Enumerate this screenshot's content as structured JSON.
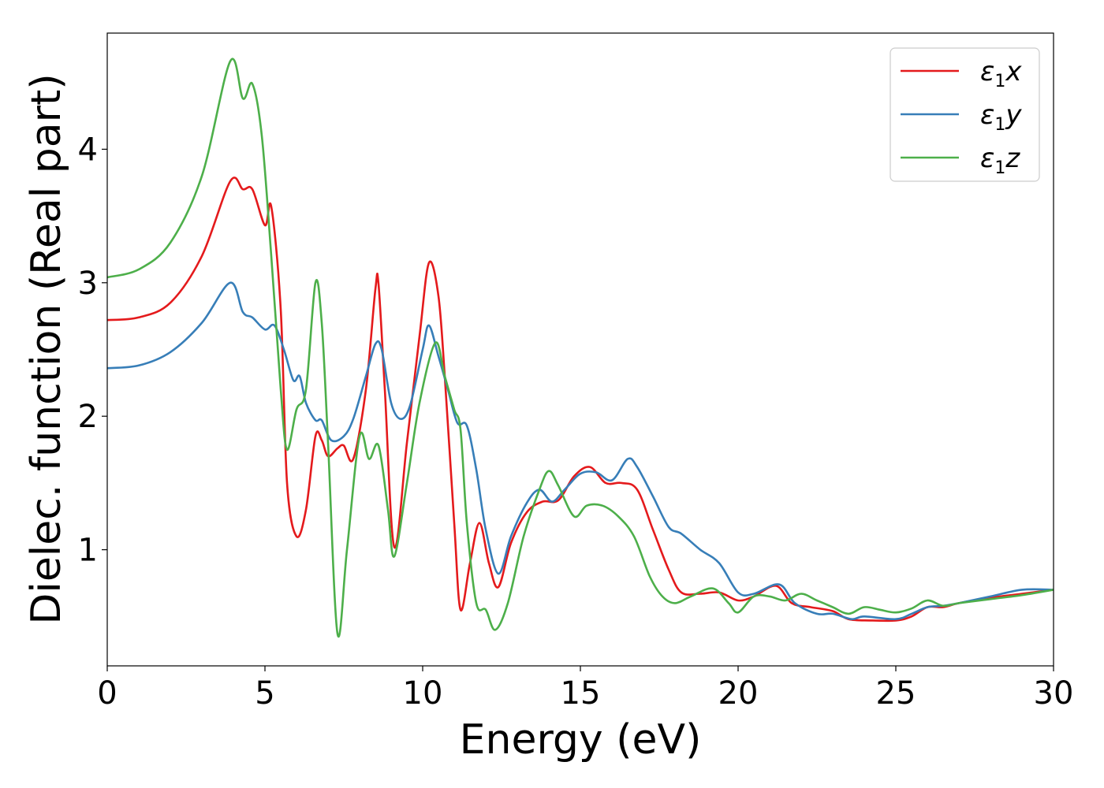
{
  "chart_data": {
    "type": "line",
    "xlabel": "Energy (eV)",
    "ylabel": "Dielec. function (Real part)",
    "xlim": [
      0,
      30
    ],
    "ylim": [
      0.13,
      4.87
    ],
    "xticks": [
      0,
      5,
      10,
      15,
      20,
      25,
      30
    ],
    "yticks": [
      1,
      2,
      3,
      4
    ],
    "grid": false,
    "legend_position": "top-right",
    "series": [
      {
        "name": "ε1x",
        "legend_base": "ε",
        "legend_sub": "1",
        "legend_var": "x",
        "color": "#e41a1c",
        "points": [
          [
            0,
            2.72
          ],
          [
            1,
            2.74
          ],
          [
            2,
            2.85
          ],
          [
            3,
            3.2
          ],
          [
            3.9,
            3.76
          ],
          [
            4.3,
            3.7
          ],
          [
            4.6,
            3.7
          ],
          [
            5.0,
            3.43
          ],
          [
            5.2,
            3.57
          ],
          [
            5.5,
            2.8
          ],
          [
            5.7,
            1.5
          ],
          [
            6.0,
            1.1
          ],
          [
            6.3,
            1.3
          ],
          [
            6.6,
            1.85
          ],
          [
            6.8,
            1.82
          ],
          [
            7.0,
            1.7
          ],
          [
            7.3,
            1.76
          ],
          [
            7.5,
            1.78
          ],
          [
            7.8,
            1.68
          ],
          [
            8.2,
            2.2
          ],
          [
            8.5,
            2.95
          ],
          [
            8.6,
            2.99
          ],
          [
            8.8,
            2.2
          ],
          [
            9.1,
            1.02
          ],
          [
            9.5,
            1.8
          ],
          [
            9.9,
            2.6
          ],
          [
            10.2,
            3.15
          ],
          [
            10.5,
            2.9
          ],
          [
            10.7,
            2.3
          ],
          [
            11.0,
            1.2
          ],
          [
            11.2,
            0.55
          ],
          [
            11.5,
            0.9
          ],
          [
            11.8,
            1.2
          ],
          [
            12.1,
            0.9
          ],
          [
            12.4,
            0.72
          ],
          [
            12.8,
            1.05
          ],
          [
            13.3,
            1.28
          ],
          [
            13.8,
            1.36
          ],
          [
            14.3,
            1.37
          ],
          [
            14.8,
            1.55
          ],
          [
            15.3,
            1.62
          ],
          [
            15.8,
            1.5
          ],
          [
            16.3,
            1.5
          ],
          [
            16.8,
            1.45
          ],
          [
            17.3,
            1.15
          ],
          [
            17.8,
            0.85
          ],
          [
            18.2,
            0.68
          ],
          [
            18.8,
            0.67
          ],
          [
            19.4,
            0.68
          ],
          [
            20.0,
            0.62
          ],
          [
            20.5,
            0.65
          ],
          [
            21.2,
            0.73
          ],
          [
            21.7,
            0.6
          ],
          [
            22.3,
            0.57
          ],
          [
            23.0,
            0.54
          ],
          [
            23.5,
            0.48
          ],
          [
            24.2,
            0.47
          ],
          [
            25.0,
            0.47
          ],
          [
            25.5,
            0.5
          ],
          [
            26.0,
            0.57
          ],
          [
            26.5,
            0.57
          ],
          [
            27.0,
            0.6
          ],
          [
            28.0,
            0.64
          ],
          [
            29.0,
            0.67
          ],
          [
            30,
            0.7
          ]
        ]
      },
      {
        "name": "ε1y",
        "legend_base": "ε",
        "legend_sub": "1",
        "legend_var": "y",
        "color": "#377eb8",
        "points": [
          [
            0,
            2.36
          ],
          [
            1,
            2.38
          ],
          [
            2,
            2.48
          ],
          [
            3,
            2.7
          ],
          [
            3.9,
            3.0
          ],
          [
            4.3,
            2.78
          ],
          [
            4.6,
            2.74
          ],
          [
            5.0,
            2.65
          ],
          [
            5.3,
            2.68
          ],
          [
            5.6,
            2.5
          ],
          [
            5.9,
            2.27
          ],
          [
            6.1,
            2.3
          ],
          [
            6.3,
            2.1
          ],
          [
            6.6,
            1.97
          ],
          [
            6.8,
            1.97
          ],
          [
            7.1,
            1.82
          ],
          [
            7.5,
            1.85
          ],
          [
            7.8,
            1.98
          ],
          [
            8.2,
            2.3
          ],
          [
            8.5,
            2.54
          ],
          [
            8.7,
            2.5
          ],
          [
            9.0,
            2.1
          ],
          [
            9.3,
            1.98
          ],
          [
            9.6,
            2.08
          ],
          [
            10.0,
            2.5
          ],
          [
            10.2,
            2.68
          ],
          [
            10.5,
            2.45
          ],
          [
            10.8,
            2.2
          ],
          [
            11.1,
            1.95
          ],
          [
            11.4,
            1.93
          ],
          [
            11.7,
            1.6
          ],
          [
            12.0,
            1.15
          ],
          [
            12.4,
            0.82
          ],
          [
            12.8,
            1.1
          ],
          [
            13.3,
            1.35
          ],
          [
            13.7,
            1.45
          ],
          [
            14.1,
            1.36
          ],
          [
            14.5,
            1.45
          ],
          [
            15.0,
            1.57
          ],
          [
            15.5,
            1.58
          ],
          [
            16.0,
            1.52
          ],
          [
            16.5,
            1.68
          ],
          [
            16.8,
            1.62
          ],
          [
            17.3,
            1.4
          ],
          [
            17.8,
            1.17
          ],
          [
            18.2,
            1.12
          ],
          [
            18.8,
            1.0
          ],
          [
            19.4,
            0.9
          ],
          [
            20.0,
            0.68
          ],
          [
            20.5,
            0.67
          ],
          [
            21.3,
            0.74
          ],
          [
            21.8,
            0.6
          ],
          [
            22.5,
            0.52
          ],
          [
            23.0,
            0.52
          ],
          [
            23.6,
            0.48
          ],
          [
            24.0,
            0.5
          ],
          [
            25.0,
            0.48
          ],
          [
            25.5,
            0.52
          ],
          [
            26.0,
            0.57
          ],
          [
            26.5,
            0.58
          ],
          [
            27.0,
            0.6
          ],
          [
            28.0,
            0.65
          ],
          [
            29.0,
            0.7
          ],
          [
            30,
            0.7
          ]
        ]
      },
      {
        "name": "ε1z",
        "legend_base": "ε",
        "legend_sub": "1",
        "legend_var": "z",
        "color": "#4daf4a",
        "points": [
          [
            0,
            3.04
          ],
          [
            1,
            3.1
          ],
          [
            2,
            3.3
          ],
          [
            3,
            3.8
          ],
          [
            3.9,
            4.66
          ],
          [
            4.3,
            4.38
          ],
          [
            4.6,
            4.49
          ],
          [
            4.9,
            4.1
          ],
          [
            5.2,
            3.2
          ],
          [
            5.5,
            2.2
          ],
          [
            5.7,
            1.75
          ],
          [
            6.0,
            2.05
          ],
          [
            6.3,
            2.2
          ],
          [
            6.6,
            3.0
          ],
          [
            6.8,
            2.7
          ],
          [
            7.0,
            1.8
          ],
          [
            7.3,
            0.37
          ],
          [
            7.6,
            1.0
          ],
          [
            8.0,
            1.85
          ],
          [
            8.3,
            1.68
          ],
          [
            8.6,
            1.78
          ],
          [
            8.9,
            1.3
          ],
          [
            9.1,
            0.95
          ],
          [
            9.5,
            1.5
          ],
          [
            9.9,
            2.1
          ],
          [
            10.4,
            2.55
          ],
          [
            10.7,
            2.3
          ],
          [
            11.0,
            2.05
          ],
          [
            11.2,
            1.9
          ],
          [
            11.4,
            1.2
          ],
          [
            11.7,
            0.6
          ],
          [
            12.0,
            0.55
          ],
          [
            12.3,
            0.4
          ],
          [
            12.7,
            0.6
          ],
          [
            13.2,
            1.1
          ],
          [
            13.7,
            1.45
          ],
          [
            14.0,
            1.59
          ],
          [
            14.3,
            1.48
          ],
          [
            14.8,
            1.25
          ],
          [
            15.2,
            1.33
          ],
          [
            15.7,
            1.33
          ],
          [
            16.2,
            1.25
          ],
          [
            16.7,
            1.1
          ],
          [
            17.2,
            0.8
          ],
          [
            17.6,
            0.65
          ],
          [
            18.0,
            0.6
          ],
          [
            18.5,
            0.65
          ],
          [
            19.2,
            0.71
          ],
          [
            19.7,
            0.6
          ],
          [
            20.0,
            0.53
          ],
          [
            20.5,
            0.65
          ],
          [
            21.0,
            0.65
          ],
          [
            21.5,
            0.62
          ],
          [
            22.0,
            0.67
          ],
          [
            22.5,
            0.62
          ],
          [
            23.0,
            0.57
          ],
          [
            23.5,
            0.52
          ],
          [
            24.0,
            0.57
          ],
          [
            24.5,
            0.55
          ],
          [
            25.0,
            0.53
          ],
          [
            25.5,
            0.56
          ],
          [
            26.0,
            0.62
          ],
          [
            26.5,
            0.58
          ],
          [
            27.0,
            0.6
          ],
          [
            28.0,
            0.63
          ],
          [
            29.0,
            0.66
          ],
          [
            30,
            0.7
          ]
        ]
      }
    ]
  }
}
